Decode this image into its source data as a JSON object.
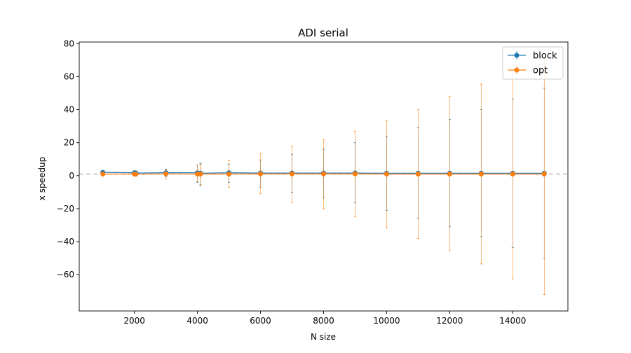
{
  "chart_data": {
    "type": "line",
    "title": "ADI serial",
    "xlabel": "N size",
    "ylabel": "x speedup",
    "xlim": [
      250,
      15750
    ],
    "ylim": [
      -82,
      81
    ],
    "xticks": [
      2000,
      4000,
      6000,
      8000,
      10000,
      12000,
      14000
    ],
    "yticks": [
      -60,
      -40,
      -20,
      0,
      20,
      40,
      60,
      80
    ],
    "reference_line": {
      "y": 1,
      "style": "dashed",
      "color": "#bbbbbb"
    },
    "legend": {
      "placement": "top-right"
    },
    "grid": false,
    "x": [
      1000,
      2000,
      2048,
      3000,
      4000,
      4096,
      5000,
      6000,
      7000,
      8000,
      9000,
      10000,
      11000,
      12000,
      13000,
      14000,
      15000
    ],
    "series": [
      {
        "name": "block",
        "color": "#1f77b4",
        "values": [
          2.0,
          1.8,
          1.6,
          1.8,
          1.8,
          1.5,
          1.8,
          1.6,
          1.6,
          1.6,
          1.6,
          1.5,
          1.5,
          1.5,
          1.5,
          1.5,
          1.5
        ],
        "err_low": [
          1.0,
          1.0,
          0.5,
          -0.5,
          -4.0,
          -6.0,
          -4.0,
          -7.0,
          -10.0,
          -13.5,
          -16.5,
          -21.0,
          -26.0,
          -31.0,
          -37.0,
          -43.5,
          -50.0
        ],
        "err_high": [
          3.0,
          2.4,
          2.4,
          4.0,
          6.5,
          7.5,
          7.0,
          9.5,
          13.0,
          16.0,
          20.0,
          24.0,
          29.0,
          34.0,
          40.0,
          46.5,
          53.0
        ]
      },
      {
        "name": "opt",
        "color": "#ff7f0e",
        "values": [
          1.0,
          1.0,
          0.9,
          1.1,
          1.0,
          1.0,
          1.0,
          1.1,
          1.1,
          1.1,
          1.1,
          1.0,
          1.0,
          1.0,
          1.0,
          1.0,
          1.0
        ],
        "err_low": [
          0.5,
          0.5,
          0.5,
          -2.0,
          -3.5,
          -5.5,
          -7.0,
          -11.0,
          -16.0,
          -20.0,
          -25.0,
          -31.5,
          -38.0,
          -45.5,
          -53.5,
          -62.5,
          -72.0
        ],
        "err_high": [
          1.5,
          1.5,
          1.5,
          3.5,
          6.5,
          7.0,
          9.0,
          13.5,
          17.5,
          22.0,
          27.0,
          33.5,
          40.0,
          48.0,
          55.5,
          63.5,
          72.0
        ]
      }
    ]
  }
}
